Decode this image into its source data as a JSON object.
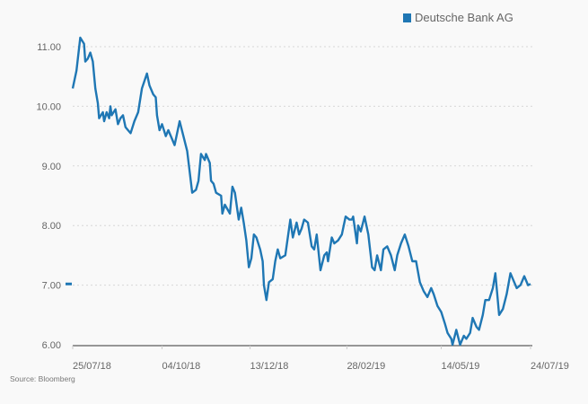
{
  "chart_data": {
    "type": "line",
    "title": "",
    "xlabel": "",
    "ylabel": "",
    "x_unit": "days since 25/07/18",
    "xlim": [
      0,
      364
    ],
    "ylim": [
      6,
      11
    ],
    "grid": "horizontal dotted",
    "legend_placement": "top-right",
    "y_ticks": [
      {
        "value": 11,
        "label": "11.00"
      },
      {
        "value": 10,
        "label": "10.00"
      },
      {
        "value": 9,
        "label": "9.00"
      },
      {
        "value": 8,
        "label": "8.00"
      },
      {
        "value": 7,
        "label": "7.00"
      },
      {
        "value": 6,
        "label": "6.00"
      }
    ],
    "x_ticks": [
      {
        "value": 0,
        "label": "25/07/18"
      },
      {
        "value": 71,
        "label": "04/10/18"
      },
      {
        "value": 141,
        "label": "13/12/18"
      },
      {
        "value": 218,
        "label": "28/02/19"
      },
      {
        "value": 293,
        "label": "14/05/19"
      },
      {
        "value": 364,
        "label": "24/07/19"
      }
    ],
    "last_value_marker": 7.02,
    "series": [
      {
        "name": "Deutsche Bank AG",
        "color": "#1f77b4",
        "x": [
          0,
          3,
          6,
          9,
          10,
          12,
          14,
          16,
          18,
          20,
          21,
          24,
          25,
          27,
          29,
          30,
          31,
          34,
          36,
          38,
          40,
          42,
          44,
          46,
          49,
          52,
          55,
          59,
          61,
          64,
          66,
          67,
          69,
          71,
          74,
          76,
          78,
          81,
          85,
          88,
          91,
          93,
          95,
          98,
          100,
          102,
          105,
          106,
          109,
          110,
          112,
          114,
          118,
          119,
          121,
          125,
          127,
          129,
          132,
          134,
          136,
          138,
          140,
          142,
          144,
          146,
          149,
          151,
          152,
          154,
          156,
          159,
          161,
          163,
          165,
          169,
          173,
          175,
          178,
          180,
          182,
          184,
          187,
          190,
          192,
          194,
          197,
          200,
          202,
          203,
          206,
          208,
          211,
          214,
          217,
          220,
          222,
          223,
          226,
          227,
          229,
          232,
          235,
          238,
          240,
          242,
          245,
          247,
          250,
          253,
          256,
          258,
          261,
          264,
          267,
          270,
          273,
          276,
          279,
          282,
          285,
          287,
          290,
          293,
          296,
          298,
          301,
          302,
          305,
          308,
          311,
          313,
          316,
          318,
          321,
          323,
          326,
          328,
          331,
          334,
          336,
          339,
          342,
          345,
          348,
          351,
          353,
          356,
          359,
          362,
          364
        ],
        "values": [
          10.3,
          10.6,
          11.15,
          11.05,
          10.75,
          10.8,
          10.9,
          10.75,
          10.3,
          10.05,
          9.8,
          9.9,
          9.75,
          9.9,
          9.8,
          10.0,
          9.85,
          9.95,
          9.7,
          9.8,
          9.85,
          9.65,
          9.6,
          9.55,
          9.75,
          9.9,
          10.3,
          10.55,
          10.35,
          10.2,
          10.15,
          9.85,
          9.6,
          9.7,
          9.5,
          9.6,
          9.5,
          9.35,
          9.75,
          9.5,
          9.25,
          8.9,
          8.55,
          8.6,
          8.75,
          9.2,
          9.1,
          9.2,
          9.05,
          8.75,
          8.7,
          8.55,
          8.5,
          8.2,
          8.35,
          8.2,
          8.65,
          8.55,
          8.1,
          8.3,
          8.05,
          7.75,
          7.3,
          7.45,
          7.85,
          7.8,
          7.6,
          7.4,
          7.0,
          6.75,
          7.05,
          7.1,
          7.4,
          7.6,
          7.45,
          7.5,
          8.1,
          7.8,
          8.05,
          7.85,
          7.95,
          8.1,
          8.05,
          7.65,
          7.6,
          7.85,
          7.25,
          7.5,
          7.55,
          7.4,
          7.8,
          7.7,
          7.75,
          7.85,
          8.15,
          8.1,
          8.1,
          8.15,
          7.7,
          8.0,
          7.9,
          8.15,
          7.85,
          7.3,
          7.25,
          7.5,
          7.25,
          7.6,
          7.65,
          7.5,
          7.25,
          7.5,
          7.7,
          7.85,
          7.65,
          7.4,
          7.4,
          7.05,
          6.9,
          6.8,
          6.95,
          6.85,
          6.65,
          6.55,
          6.35,
          6.2,
          6.1,
          6.0,
          6.25,
          6.0,
          6.15,
          6.1,
          6.2,
          6.45,
          6.3,
          6.25,
          6.5,
          6.75,
          6.75,
          6.95,
          7.2,
          6.5,
          6.6,
          6.85,
          7.2,
          7.05,
          6.95,
          7.0,
          7.15,
          7.0,
          7.02
        ]
      }
    ]
  },
  "legend": {
    "label": "Deutsche Bank AG"
  },
  "source": "Source: Bloomberg"
}
